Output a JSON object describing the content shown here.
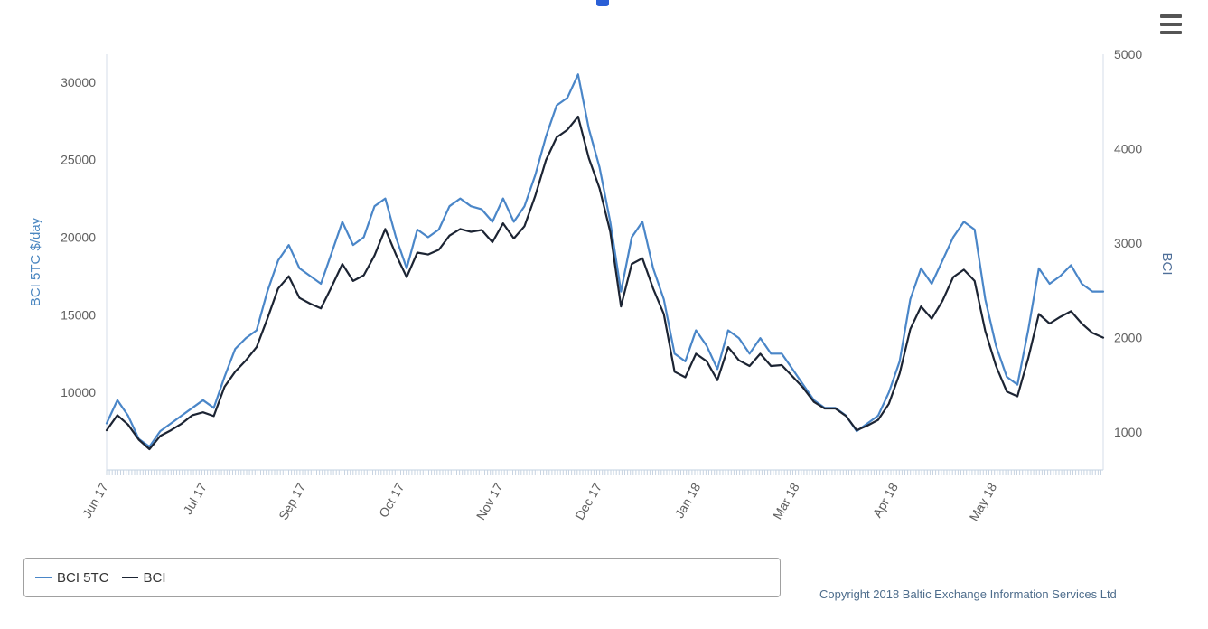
{
  "toolbar": {
    "menu_icon": "hamburger-menu-icon"
  },
  "chart_data": {
    "type": "line",
    "title": "",
    "x_tick_labels": [
      "Jun 17",
      "Jul 17",
      "Sep 17",
      "Oct 17",
      "Nov 17",
      "Dec 17",
      "Jan 18",
      "Mar 18",
      "Apr 18",
      "May 18"
    ],
    "y_left": {
      "label": "BCI 5TC $/day",
      "ticks": [
        10000,
        15000,
        20000,
        25000,
        30000
      ],
      "range": [
        5000,
        31800
      ]
    },
    "y_right": {
      "label": "BCI",
      "ticks": [
        1000,
        2000,
        3000,
        4000,
        5000
      ],
      "range": [
        600,
        5000
      ]
    },
    "series": [
      {
        "name": "BCI 5TC",
        "axis": "left",
        "color": "#4a86c8",
        "values": [
          8000,
          9500,
          8500,
          7000,
          6500,
          7500,
          8000,
          8500,
          9000,
          9500,
          9000,
          11000,
          12800,
          13500,
          14000,
          16500,
          18500,
          19500,
          18000,
          17500,
          17000,
          19000,
          21000,
          19500,
          20000,
          22000,
          22500,
          20000,
          18000,
          20500,
          20000,
          20500,
          22000,
          22500,
          22000,
          21800,
          21000,
          22500,
          21000,
          22000,
          24000,
          26500,
          28500,
          29000,
          30500,
          27000,
          24500,
          21000,
          16500,
          20000,
          21000,
          18000,
          16000,
          12500,
          12000,
          14000,
          13000,
          11500,
          14000,
          13500,
          12500,
          13500,
          12500,
          12500,
          11500,
          10500,
          9500,
          9000,
          9000,
          8500,
          7500,
          8000,
          8500,
          10000,
          12000,
          16000,
          18000,
          17000,
          18500,
          20000,
          21000,
          20500,
          16000,
          13000,
          11000,
          10500,
          14000,
          18000,
          17000,
          17500,
          18200,
          17000,
          16500,
          16500
        ]
      },
      {
        "name": "BCI",
        "axis": "right",
        "color": "#1c2433",
        "values": [
          1020,
          1180,
          1080,
          920,
          820,
          960,
          1020,
          1090,
          1180,
          1210,
          1170,
          1480,
          1640,
          1760,
          1900,
          2200,
          2520,
          2650,
          2420,
          2360,
          2310,
          2540,
          2780,
          2600,
          2660,
          2870,
          3150,
          2880,
          2640,
          2900,
          2880,
          2930,
          3080,
          3150,
          3120,
          3140,
          3010,
          3210,
          3050,
          3180,
          3500,
          3880,
          4120,
          4200,
          4340,
          3900,
          3580,
          3120,
          2330,
          2780,
          2840,
          2520,
          2250,
          1640,
          1580,
          1830,
          1750,
          1550,
          1900,
          1760,
          1700,
          1830,
          1700,
          1710,
          1590,
          1470,
          1320,
          1250,
          1250,
          1170,
          1020,
          1070,
          1130,
          1300,
          1620,
          2090,
          2330,
          2200,
          2390,
          2640,
          2720,
          2600,
          2070,
          1700,
          1430,
          1380,
          1780,
          2250,
          2150,
          2220,
          2280,
          2150,
          2050,
          2000
        ]
      }
    ],
    "legend": {
      "placement": "bottom-left",
      "entries": [
        "BCI 5TC",
        "BCI"
      ]
    },
    "grid": false
  },
  "credit": {
    "text": "Copyright 2018 Baltic Exchange Information Services Ltd"
  }
}
